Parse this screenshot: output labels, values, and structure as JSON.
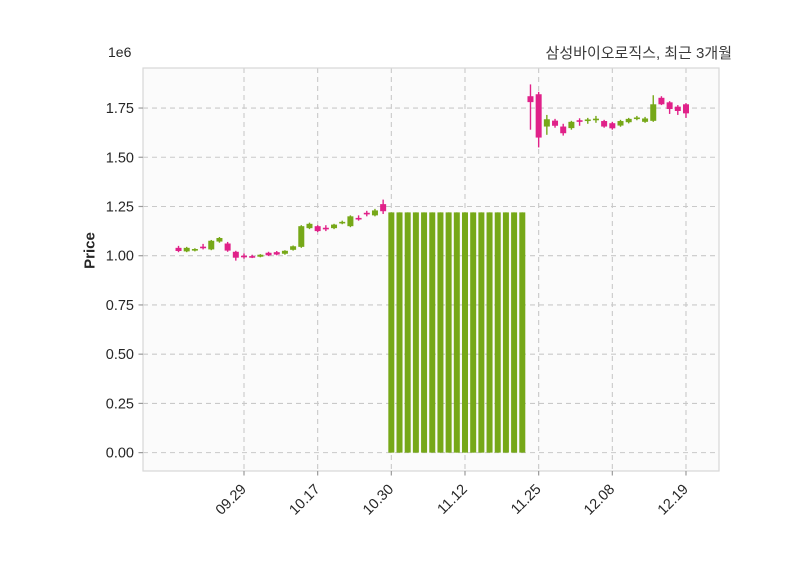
{
  "title": "삼성바이오로직스, 최근 3개월",
  "ylabel": "Price",
  "offset_text": "1e6",
  "colors": {
    "up": "#76a818",
    "down": "#e02189",
    "grid": "#c9c9c9",
    "plot_bg": "#fbfbfb",
    "border": "#d7d7d7",
    "tick_text": "#262626",
    "tick_mark": "#9a9a9a"
  },
  "chart_data": {
    "type": "candlestick",
    "title": "삼성바이오로직스, 최근 3개월",
    "xlabel": "",
    "ylabel": "Price",
    "unit_multiplier": "1e6",
    "ylim": [
      -0.0933,
      1.9533
    ],
    "grid": "dashed",
    "y_ticks": [
      0.0,
      0.25,
      0.5,
      0.75,
      1.0,
      1.25,
      1.5,
      1.75
    ],
    "x_ticks": [
      {
        "index": 8,
        "label": "09.29"
      },
      {
        "index": 17,
        "label": "10.17"
      },
      {
        "index": 26,
        "label": "10.30"
      },
      {
        "index": 35,
        "label": "11.12"
      },
      {
        "index": 44,
        "label": "11.25"
      },
      {
        "index": 53,
        "label": "12.08"
      },
      {
        "index": 62,
        "label": "12.19"
      }
    ],
    "candle_format": [
      "open",
      "high",
      "low",
      "close"
    ],
    "candles": [
      [
        1.04,
        1.05,
        1.018,
        1.024
      ],
      [
        1.022,
        1.045,
        1.018,
        1.04
      ],
      [
        1.028,
        1.038,
        1.022,
        1.034
      ],
      [
        1.046,
        1.06,
        1.032,
        1.044
      ],
      [
        1.032,
        1.08,
        1.028,
        1.076
      ],
      [
        1.072,
        1.095,
        1.066,
        1.09
      ],
      [
        1.062,
        1.07,
        1.02,
        1.026
      ],
      [
        1.02,
        1.025,
        0.975,
        0.99
      ],
      [
        1.0,
        1.012,
        0.985,
        0.998
      ],
      [
        0.998,
        1.005,
        0.988,
        0.994
      ],
      [
        0.995,
        1.008,
        0.992,
        1.005
      ],
      [
        1.015,
        1.02,
        0.998,
        1.002
      ],
      [
        1.018,
        1.024,
        1.002,
        1.006
      ],
      [
        1.01,
        1.028,
        1.005,
        1.025
      ],
      [
        1.03,
        1.052,
        1.026,
        1.048
      ],
      [
        1.045,
        1.155,
        1.04,
        1.15
      ],
      [
        1.14,
        1.168,
        1.135,
        1.162
      ],
      [
        1.15,
        1.155,
        1.12,
        1.125
      ],
      [
        1.142,
        1.155,
        1.125,
        1.138
      ],
      [
        1.14,
        1.162,
        1.135,
        1.158
      ],
      [
        1.165,
        1.178,
        1.16,
        1.172
      ],
      [
        1.15,
        1.205,
        1.145,
        1.2
      ],
      [
        1.192,
        1.205,
        1.178,
        1.186
      ],
      [
        1.218,
        1.228,
        1.2,
        1.212
      ],
      [
        1.205,
        1.238,
        1.2,
        1.23
      ],
      [
        1.262,
        1.285,
        1.212,
        1.226
      ],
      [
        0.0,
        1.22,
        0.0,
        1.22
      ],
      [
        0.0,
        1.22,
        0.0,
        1.22
      ],
      [
        0.0,
        1.22,
        0.0,
        1.22
      ],
      [
        0.0,
        1.22,
        0.0,
        1.22
      ],
      [
        0.0,
        1.22,
        0.0,
        1.22
      ],
      [
        0.0,
        1.22,
        0.0,
        1.22
      ],
      [
        0.0,
        1.22,
        0.0,
        1.22
      ],
      [
        0.0,
        1.22,
        0.0,
        1.22
      ],
      [
        0.0,
        1.22,
        0.0,
        1.22
      ],
      [
        0.0,
        1.22,
        0.0,
        1.22
      ],
      [
        0.0,
        1.22,
        0.0,
        1.22
      ],
      [
        0.0,
        1.22,
        0.0,
        1.22
      ],
      [
        0.0,
        1.22,
        0.0,
        1.22
      ],
      [
        0.0,
        1.22,
        0.0,
        1.22
      ],
      [
        0.0,
        1.22,
        0.0,
        1.22
      ],
      [
        0.0,
        1.22,
        0.0,
        1.22
      ],
      [
        0.0,
        1.22,
        0.0,
        1.22
      ],
      [
        1.81,
        1.87,
        1.64,
        1.78
      ],
      [
        1.82,
        1.832,
        1.55,
        1.6
      ],
      [
        1.656,
        1.715,
        1.614,
        1.693
      ],
      [
        1.686,
        1.695,
        1.65,
        1.66
      ],
      [
        1.656,
        1.67,
        1.61,
        1.622
      ],
      [
        1.648,
        1.685,
        1.64,
        1.68
      ],
      [
        1.688,
        1.698,
        1.66,
        1.684
      ],
      [
        1.685,
        1.7,
        1.67,
        1.692
      ],
      [
        1.692,
        1.71,
        1.675,
        1.696
      ],
      [
        1.684,
        1.69,
        1.65,
        1.656
      ],
      [
        1.673,
        1.68,
        1.64,
        1.647
      ],
      [
        1.661,
        1.69,
        1.655,
        1.684
      ],
      [
        1.678,
        1.7,
        1.672,
        1.695
      ],
      [
        1.698,
        1.71,
        1.688,
        1.702
      ],
      [
        1.68,
        1.705,
        1.675,
        1.697
      ],
      [
        1.685,
        1.815,
        1.68,
        1.769
      ],
      [
        1.802,
        1.81,
        1.765,
        1.769
      ],
      [
        1.779,
        1.785,
        1.72,
        1.745
      ],
      [
        1.757,
        1.765,
        1.715,
        1.735
      ],
      [
        1.769,
        1.775,
        1.7,
        1.723
      ]
    ]
  }
}
